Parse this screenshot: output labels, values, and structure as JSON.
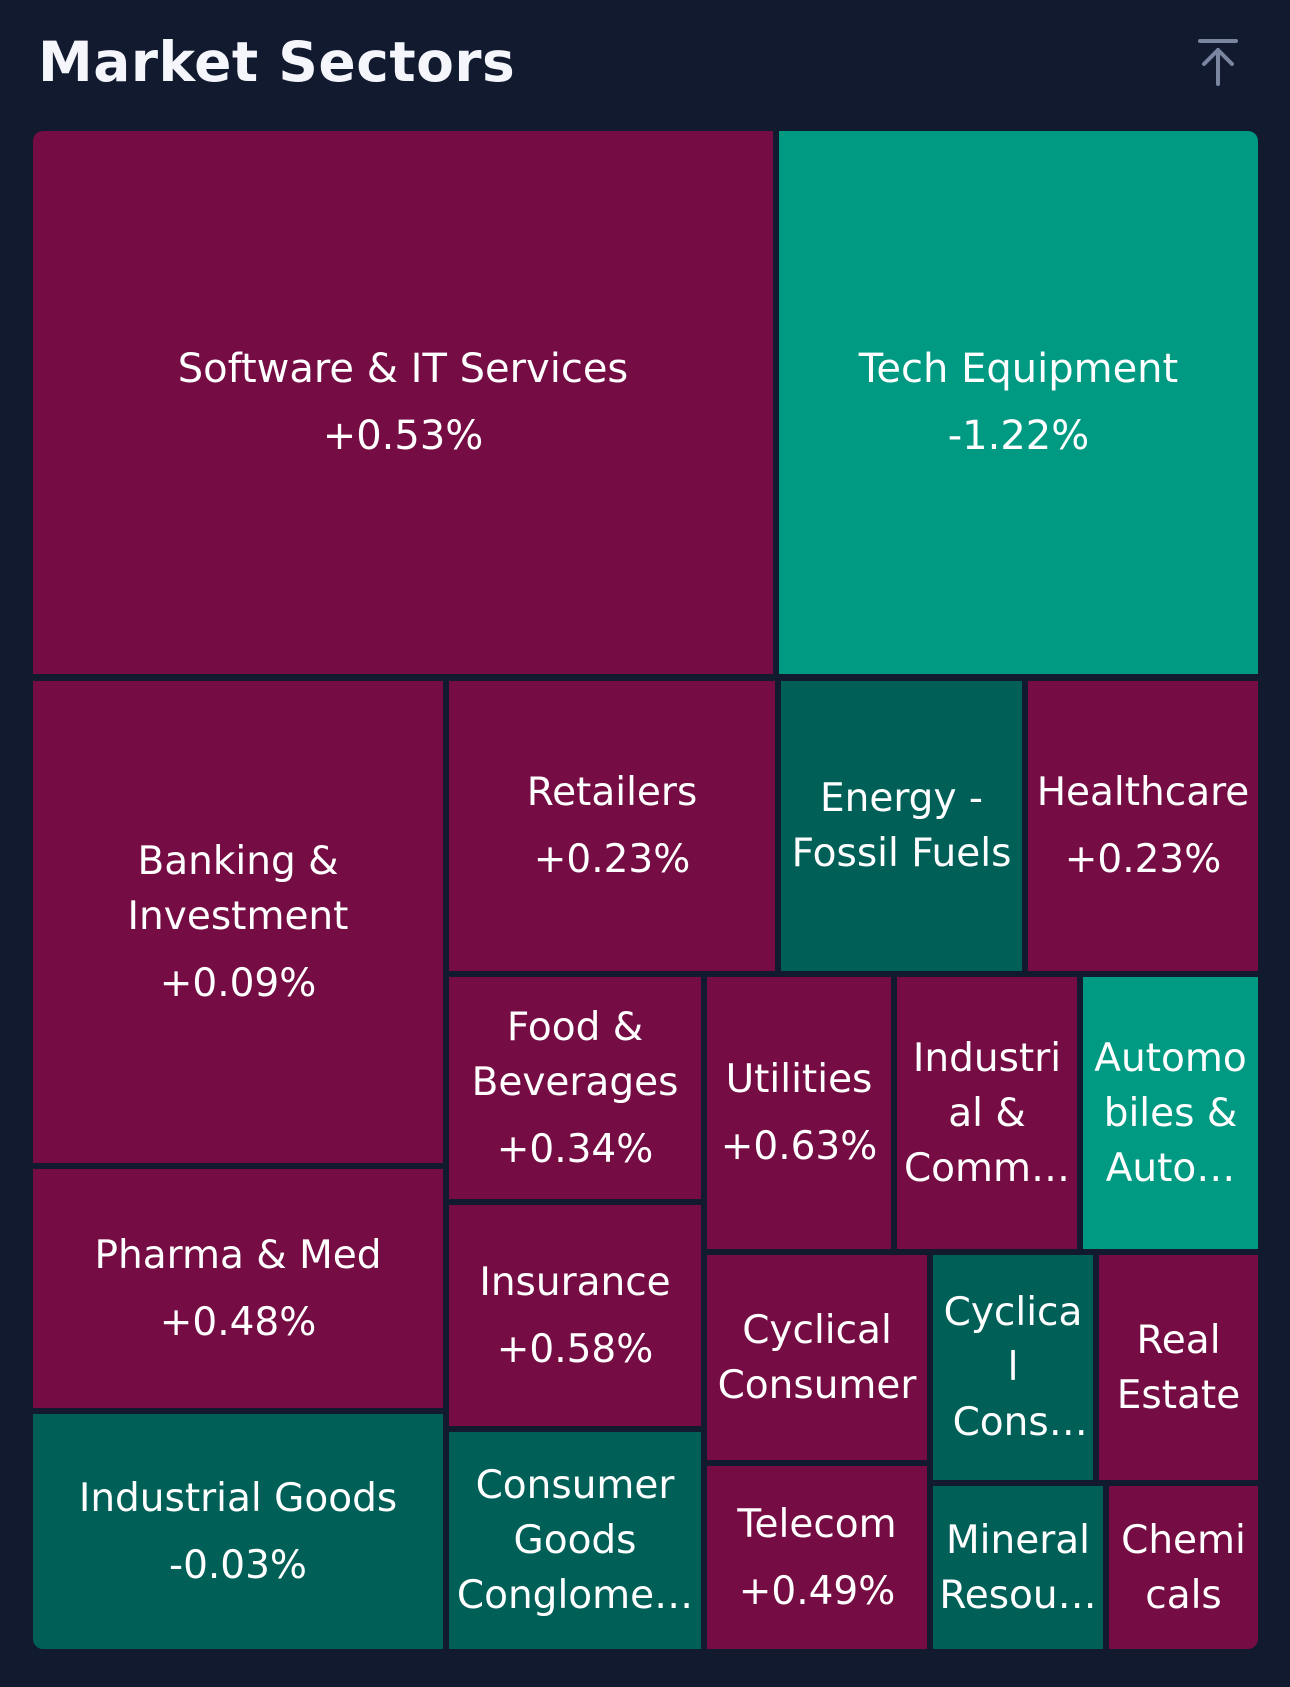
{
  "header": {
    "title": "Market Sectors",
    "collapse_icon": "collapse-up-icon"
  },
  "colors": {
    "background": "#121a30",
    "positive": "#750c43",
    "negative_strong": "#009a83",
    "negative_mild": "#006058"
  },
  "sectors": [
    {
      "name": "Software & IT Services",
      "change": "+0.53%"
    },
    {
      "name": "Tech Equipment",
      "change": "-1.22%"
    },
    {
      "name": "Banking & Investment",
      "change": "+0.09%"
    },
    {
      "name": "Retailers",
      "change": "+0.23%"
    },
    {
      "name": "Energy - Fossil Fuels",
      "change": ""
    },
    {
      "name": "Healthcare",
      "change": "+0.23%"
    },
    {
      "name": "Food & Beverages",
      "change": "+0.34%"
    },
    {
      "name": "Utilities",
      "change": "+0.63%"
    },
    {
      "name": "Industrial & Comm…",
      "change": ""
    },
    {
      "name": "Automobiles & Auto…",
      "change": ""
    },
    {
      "name": "Pharma & Med",
      "change": "+0.48%"
    },
    {
      "name": "Insurance",
      "change": "+0.58%"
    },
    {
      "name": "Cyclical Consumer",
      "change": ""
    },
    {
      "name": "Cyclical Consumer…",
      "change": ""
    },
    {
      "name": "Real Estate",
      "change": ""
    },
    {
      "name": "Industrial Goods",
      "change": "-0.03%"
    },
    {
      "name": "Consumer Goods Conglome…",
      "change": ""
    },
    {
      "name": "Telecom",
      "change": "+0.49%"
    },
    {
      "name": "Mineral Resou…",
      "change": ""
    },
    {
      "name": "Chemicals",
      "change": ""
    }
  ]
}
